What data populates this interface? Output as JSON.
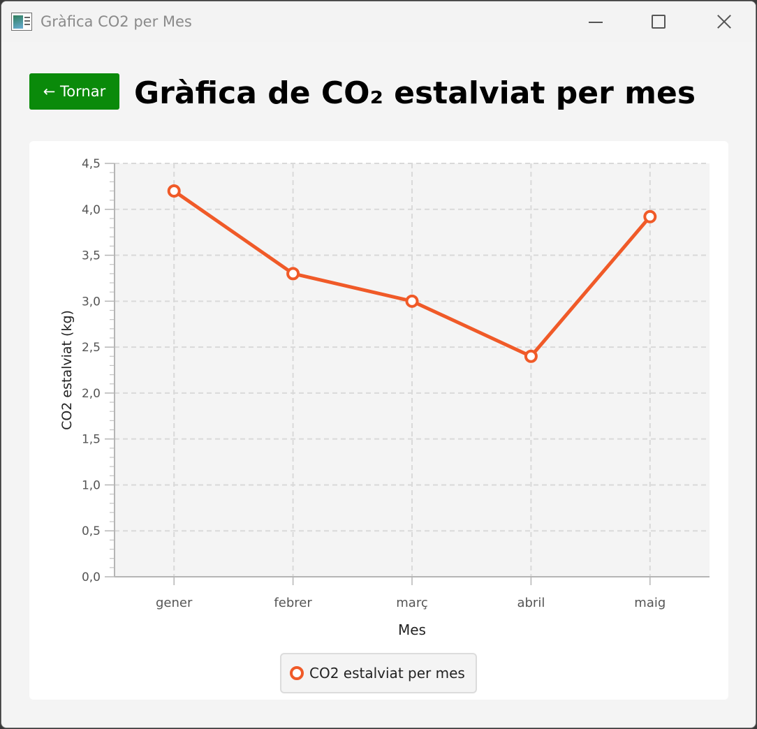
{
  "window": {
    "title": "Gràfica CO2 per Mes",
    "icon": "chart-app-icon"
  },
  "header": {
    "back_label": "← Tornar",
    "title": "Gràfica de CO₂ estalviat per mes"
  },
  "colors": {
    "back_button": "#0a8a0a",
    "series": "#f05a28",
    "plot_bg": "#f4f4f4",
    "grid": "#d9d9d9"
  },
  "chart_data": {
    "type": "line",
    "title": "",
    "xlabel": "Mes",
    "ylabel": "CO2 estalviat (kg)",
    "categories": [
      "gener",
      "febrer",
      "març",
      "abril",
      "maig"
    ],
    "series": [
      {
        "name": "CO2 estalviat per mes",
        "values": [
          4.2,
          3.3,
          3.0,
          2.4,
          3.92
        ]
      }
    ],
    "ylim": [
      0,
      4.5
    ],
    "ytick_step": 0.5,
    "ytick_labels": [
      "0,0",
      "0,5",
      "1,0",
      "1,5",
      "2,0",
      "2,5",
      "3,0",
      "3,5",
      "4,0",
      "4,5"
    ],
    "grid": true,
    "legend_position": "bottom-center"
  }
}
